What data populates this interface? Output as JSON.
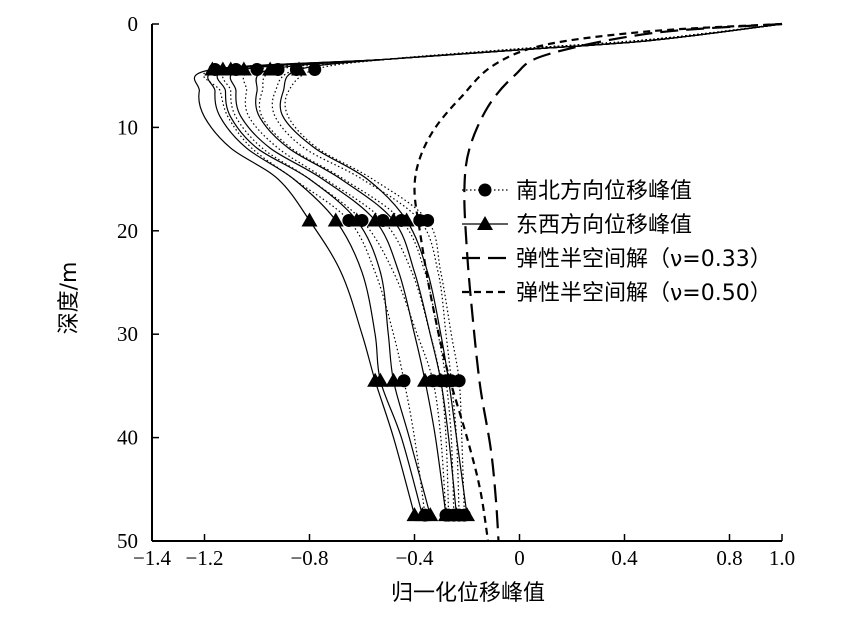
{
  "chart_data": {
    "type": "line",
    "xlabel": "归一化位移峰值",
    "ylabel": "深度/m",
    "xlim": [
      -1.4,
      1.0
    ],
    "ylim": [
      0,
      50
    ],
    "y_inverted": true,
    "x_axis_position": "top",
    "grid": false,
    "legend_placement": "center-right",
    "x_ticks": [
      -1.4,
      -1.2,
      -0.8,
      -0.4,
      0,
      0.4,
      0.8,
      1.0
    ],
    "x_tick_labels": [
      "−1.4",
      "−1.2",
      "−0.8",
      "−0.4",
      "0",
      "0.4",
      "0.8",
      "1.0"
    ],
    "y_ticks": [
      0,
      10,
      20,
      30,
      40,
      50
    ],
    "y_tick_labels": [
      "0",
      "10",
      "20",
      "30",
      "40",
      "50"
    ],
    "marker_depths": [
      4.4,
      19.0,
      34.5,
      47.5
    ],
    "series": [
      {
        "name": "南北方向位移峰值",
        "style": "dotted",
        "marker": "circle",
        "color": "#000000",
        "curves": [
          [
            [
              1.0,
              0
            ],
            [
              0.5,
              1.5
            ],
            [
              0.0,
              2.4
            ],
            [
              -0.5,
              3.4
            ],
            [
              -0.78,
              4.4
            ],
            [
              -0.88,
              6.5
            ],
            [
              -0.88,
              9
            ],
            [
              -0.77,
              12
            ],
            [
              -0.56,
              15
            ],
            [
              -0.35,
              19
            ],
            [
              -0.3,
              24
            ],
            [
              -0.26,
              30
            ],
            [
              -0.23,
              34.5
            ],
            [
              -0.22,
              40
            ],
            [
              -0.21,
              47.5
            ]
          ],
          [
            [
              1.0,
              0
            ],
            [
              0.5,
              1.5
            ],
            [
              0.0,
              2.4
            ],
            [
              -0.5,
              3.4
            ],
            [
              -0.85,
              4.4
            ],
            [
              -0.93,
              6.5
            ],
            [
              -0.93,
              9
            ],
            [
              -0.82,
              12
            ],
            [
              -0.6,
              15
            ],
            [
              -0.38,
              19
            ],
            [
              -0.31,
              24
            ],
            [
              -0.28,
              30
            ],
            [
              -0.26,
              34.5
            ],
            [
              -0.24,
              40
            ],
            [
              -0.23,
              47.5
            ]
          ],
          [
            [
              1.0,
              0
            ],
            [
              0.5,
              1.5
            ],
            [
              0.0,
              2.4
            ],
            [
              -0.5,
              3.4
            ],
            [
              -0.92,
              4.4
            ],
            [
              -0.98,
              6.5
            ],
            [
              -0.98,
              9
            ],
            [
              -0.87,
              12
            ],
            [
              -0.67,
              15
            ],
            [
              -0.45,
              19
            ],
            [
              -0.36,
              24
            ],
            [
              -0.31,
              30
            ],
            [
              -0.28,
              34.5
            ],
            [
              -0.26,
              40
            ],
            [
              -0.25,
              47.5
            ]
          ],
          [
            [
              1.0,
              0
            ],
            [
              0.5,
              1.5
            ],
            [
              0.0,
              2.4
            ],
            [
              -0.5,
              3.4
            ],
            [
              -1.0,
              4.4
            ],
            [
              -1.04,
              6.5
            ],
            [
              -1.03,
              9
            ],
            [
              -0.92,
              12
            ],
            [
              -0.74,
              15
            ],
            [
              -0.52,
              19
            ],
            [
              -0.41,
              24
            ],
            [
              -0.34,
              30
            ],
            [
              -0.3,
              34.5
            ],
            [
              -0.28,
              40
            ],
            [
              -0.27,
              47.5
            ]
          ],
          [
            [
              1.0,
              0
            ],
            [
              0.5,
              1.5
            ],
            [
              0.0,
              2.4
            ],
            [
              -0.5,
              3.4
            ],
            [
              -1.08,
              4.4
            ],
            [
              -1.1,
              6.5
            ],
            [
              -1.08,
              9
            ],
            [
              -0.98,
              12
            ],
            [
              -0.8,
              15
            ],
            [
              -0.6,
              19
            ],
            [
              -0.48,
              24
            ],
            [
              -0.39,
              30
            ],
            [
              -0.33,
              34.5
            ],
            [
              -0.3,
              40
            ],
            [
              -0.28,
              47.5
            ]
          ],
          [
            [
              1.0,
              0
            ],
            [
              0.5,
              1.5
            ],
            [
              0.0,
              2.4
            ],
            [
              -0.5,
              3.4
            ],
            [
              -1.16,
              4.4
            ],
            [
              -1.14,
              6.5
            ],
            [
              -1.11,
              9
            ],
            [
              -1.02,
              12
            ],
            [
              -0.86,
              15
            ],
            [
              -0.65,
              19
            ],
            [
              -0.55,
              24
            ],
            [
              -0.48,
              30
            ],
            [
              -0.44,
              34.5
            ],
            [
              -0.4,
              40
            ],
            [
              -0.36,
              47.5
            ]
          ]
        ]
      },
      {
        "name": "东西方向位移峰值",
        "style": "solid",
        "marker": "triangle",
        "color": "#000000",
        "curves": [
          [
            [
              1.0,
              0
            ],
            [
              0.5,
              1.6
            ],
            [
              0.0,
              2.5
            ],
            [
              -0.5,
              3.4
            ],
            [
              -0.84,
              4.4
            ],
            [
              -0.9,
              6.5
            ],
            [
              -0.9,
              9
            ],
            [
              -0.78,
              12
            ],
            [
              -0.58,
              15
            ],
            [
              -0.43,
              19
            ],
            [
              -0.35,
              24
            ],
            [
              -0.3,
              30
            ],
            [
              -0.27,
              34.5
            ],
            [
              -0.24,
              40
            ],
            [
              -0.2,
              47.5
            ]
          ],
          [
            [
              1.0,
              0
            ],
            [
              0.5,
              1.6
            ],
            [
              0.0,
              2.5
            ],
            [
              -0.5,
              3.4
            ],
            [
              -0.95,
              4.4
            ],
            [
              -1.0,
              6.5
            ],
            [
              -0.99,
              9
            ],
            [
              -0.88,
              12
            ],
            [
              -0.68,
              15
            ],
            [
              -0.48,
              19
            ],
            [
              -0.4,
              24
            ],
            [
              -0.34,
              30
            ],
            [
              -0.3,
              34.5
            ],
            [
              -0.27,
              40
            ],
            [
              -0.24,
              47.5
            ]
          ],
          [
            [
              1.0,
              0
            ],
            [
              0.5,
              1.6
            ],
            [
              0.0,
              2.5
            ],
            [
              -0.5,
              3.4
            ],
            [
              -1.05,
              4.4
            ],
            [
              -1.08,
              6.5
            ],
            [
              -1.06,
              9
            ],
            [
              -0.95,
              12
            ],
            [
              -0.75,
              15
            ],
            [
              -0.55,
              19
            ],
            [
              -0.46,
              24
            ],
            [
              -0.4,
              30
            ],
            [
              -0.36,
              34.5
            ],
            [
              -0.32,
              40
            ],
            [
              -0.28,
              47.5
            ]
          ],
          [
            [
              1.0,
              0
            ],
            [
              0.5,
              1.6
            ],
            [
              0.0,
              2.5
            ],
            [
              -0.5,
              3.4
            ],
            [
              -1.1,
              4.4
            ],
            [
              -1.12,
              6.5
            ],
            [
              -1.1,
              9
            ],
            [
              -1.0,
              12
            ],
            [
              -0.8,
              15
            ],
            [
              -0.62,
              19
            ],
            [
              -0.53,
              24
            ],
            [
              -0.5,
              30
            ],
            [
              -0.48,
              34.5
            ],
            [
              -0.42,
              40
            ],
            [
              -0.34,
              47.5
            ]
          ],
          [
            [
              1.0,
              0
            ],
            [
              0.5,
              1.6
            ],
            [
              0.0,
              2.5
            ],
            [
              -0.5,
              3.4
            ],
            [
              -1.13,
              4.4
            ],
            [
              -1.16,
              6.5
            ],
            [
              -1.14,
              9
            ],
            [
              -1.04,
              12
            ],
            [
              -0.86,
              15
            ],
            [
              -0.7,
              19
            ],
            [
              -0.6,
              24
            ],
            [
              -0.55,
              30
            ],
            [
              -0.53,
              34.5
            ],
            [
              -0.45,
              40
            ],
            [
              -0.37,
              47.5
            ]
          ],
          [
            [
              1.0,
              0
            ],
            [
              0.5,
              1.6
            ],
            [
              0.0,
              2.5
            ],
            [
              -0.5,
              3.4
            ],
            [
              -1.17,
              4.4
            ],
            [
              -1.22,
              6.5
            ],
            [
              -1.2,
              9
            ],
            [
              -1.1,
              12
            ],
            [
              -0.92,
              15
            ],
            [
              -0.8,
              19
            ],
            [
              -0.68,
              24
            ],
            [
              -0.6,
              30
            ],
            [
              -0.55,
              34.5
            ],
            [
              -0.48,
              40
            ],
            [
              -0.4,
              47.5
            ]
          ]
        ]
      },
      {
        "name": "弹性半空间解（ν=0.33）",
        "style": "long-dash",
        "marker": "none",
        "color": "#000000",
        "curves": [
          [
            [
              1.0,
              0
            ],
            [
              0.5,
              0.9
            ],
            [
              0.1,
              3
            ],
            [
              -0.02,
              5
            ],
            [
              -0.12,
              8
            ],
            [
              -0.19,
              12
            ],
            [
              -0.21,
              16
            ],
            [
              -0.2,
              22
            ],
            [
              -0.18,
              28
            ],
            [
              -0.15,
              35
            ],
            [
              -0.11,
              41
            ],
            [
              -0.09,
              46
            ],
            [
              -0.08,
              50
            ]
          ]
        ]
      },
      {
        "name": "弹性半空间解（ν=0.50）",
        "style": "short-dash",
        "marker": "none",
        "color": "#000000",
        "curves": [
          [
            [
              1.0,
              0
            ],
            [
              0.5,
              0.7
            ],
            [
              0.1,
              2
            ],
            [
              -0.1,
              4
            ],
            [
              -0.22,
              7
            ],
            [
              -0.32,
              10
            ],
            [
              -0.38,
              13
            ],
            [
              -0.4,
              16
            ],
            [
              -0.38,
              20
            ],
            [
              -0.34,
              26
            ],
            [
              -0.28,
              33
            ],
            [
              -0.2,
              40
            ],
            [
              -0.15,
              45
            ],
            [
              -0.12,
              50
            ]
          ]
        ]
      }
    ]
  }
}
